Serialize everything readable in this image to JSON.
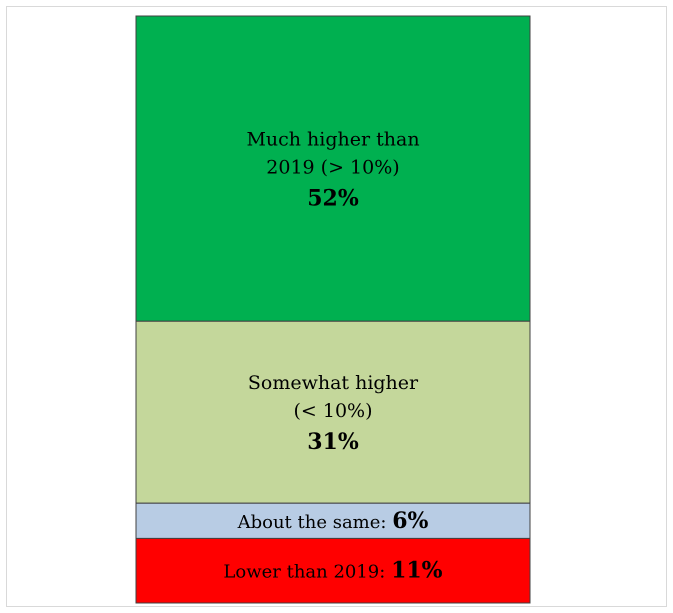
{
  "chart_data": {
    "type": "bar",
    "stacked": true,
    "total": 100,
    "segments": [
      {
        "label_lines": [
          "Much higher than",
          "2019 (> 10%)"
        ],
        "value": 52,
        "value_label": "52%",
        "color": "#00b050"
      },
      {
        "label_lines": [
          "Somewhat higher",
          "(< 10%)"
        ],
        "value": 31,
        "value_label": "31%",
        "color": "#c4d79b"
      },
      {
        "label_lines": [
          "About the same:"
        ],
        "value": 6,
        "value_label": "6%",
        "color": "#b8cce4",
        "inline": true
      },
      {
        "label_lines": [
          "Lower than 2019:"
        ],
        "value": 11,
        "value_label": "11%",
        "color": "#ff0000",
        "inline": true
      }
    ]
  }
}
